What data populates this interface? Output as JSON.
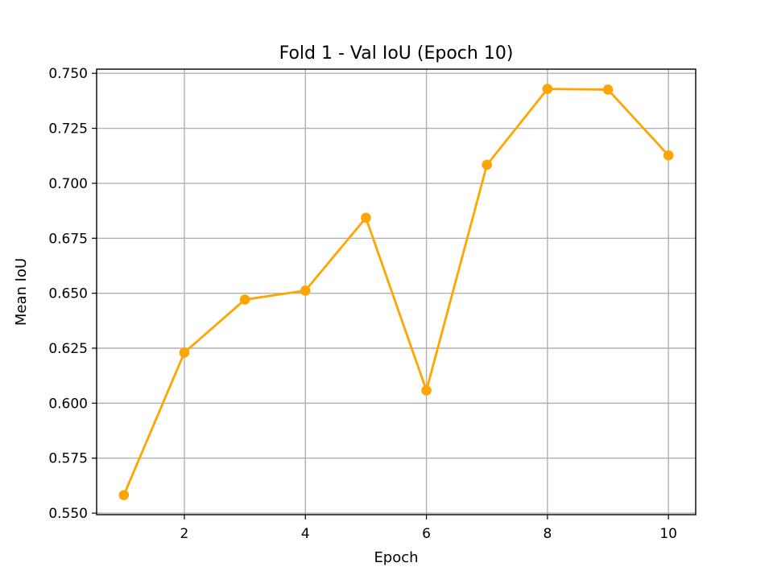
{
  "chart_data": {
    "type": "line",
    "title": "Fold 1 - Val IoU (Epoch 10)",
    "xlabel": "Epoch",
    "ylabel": "Mean IoU",
    "xlim": [
      0.55,
      10.45
    ],
    "ylim": [
      0.5493,
      0.7519
    ],
    "xticks": [
      2,
      4,
      6,
      8,
      10
    ],
    "xtick_labels": [
      "2",
      "4",
      "6",
      "8",
      "10"
    ],
    "yticks": [
      0.55,
      0.575,
      0.6,
      0.625,
      0.65,
      0.675,
      0.7,
      0.725,
      0.75
    ],
    "ytick_labels": [
      "0.550",
      "0.575",
      "0.600",
      "0.625",
      "0.650",
      "0.675",
      "0.700",
      "0.725",
      "0.750"
    ],
    "grid": true,
    "color": "#ffa500",
    "marker": "circle",
    "series": [
      {
        "x": [
          1,
          2,
          3,
          4,
          5,
          6,
          7,
          8,
          9,
          10
        ],
        "y": [
          0.5582,
          0.623,
          0.6471,
          0.6512,
          0.6843,
          0.6058,
          0.7084,
          0.7429,
          0.7426,
          0.7127
        ]
      }
    ]
  }
}
